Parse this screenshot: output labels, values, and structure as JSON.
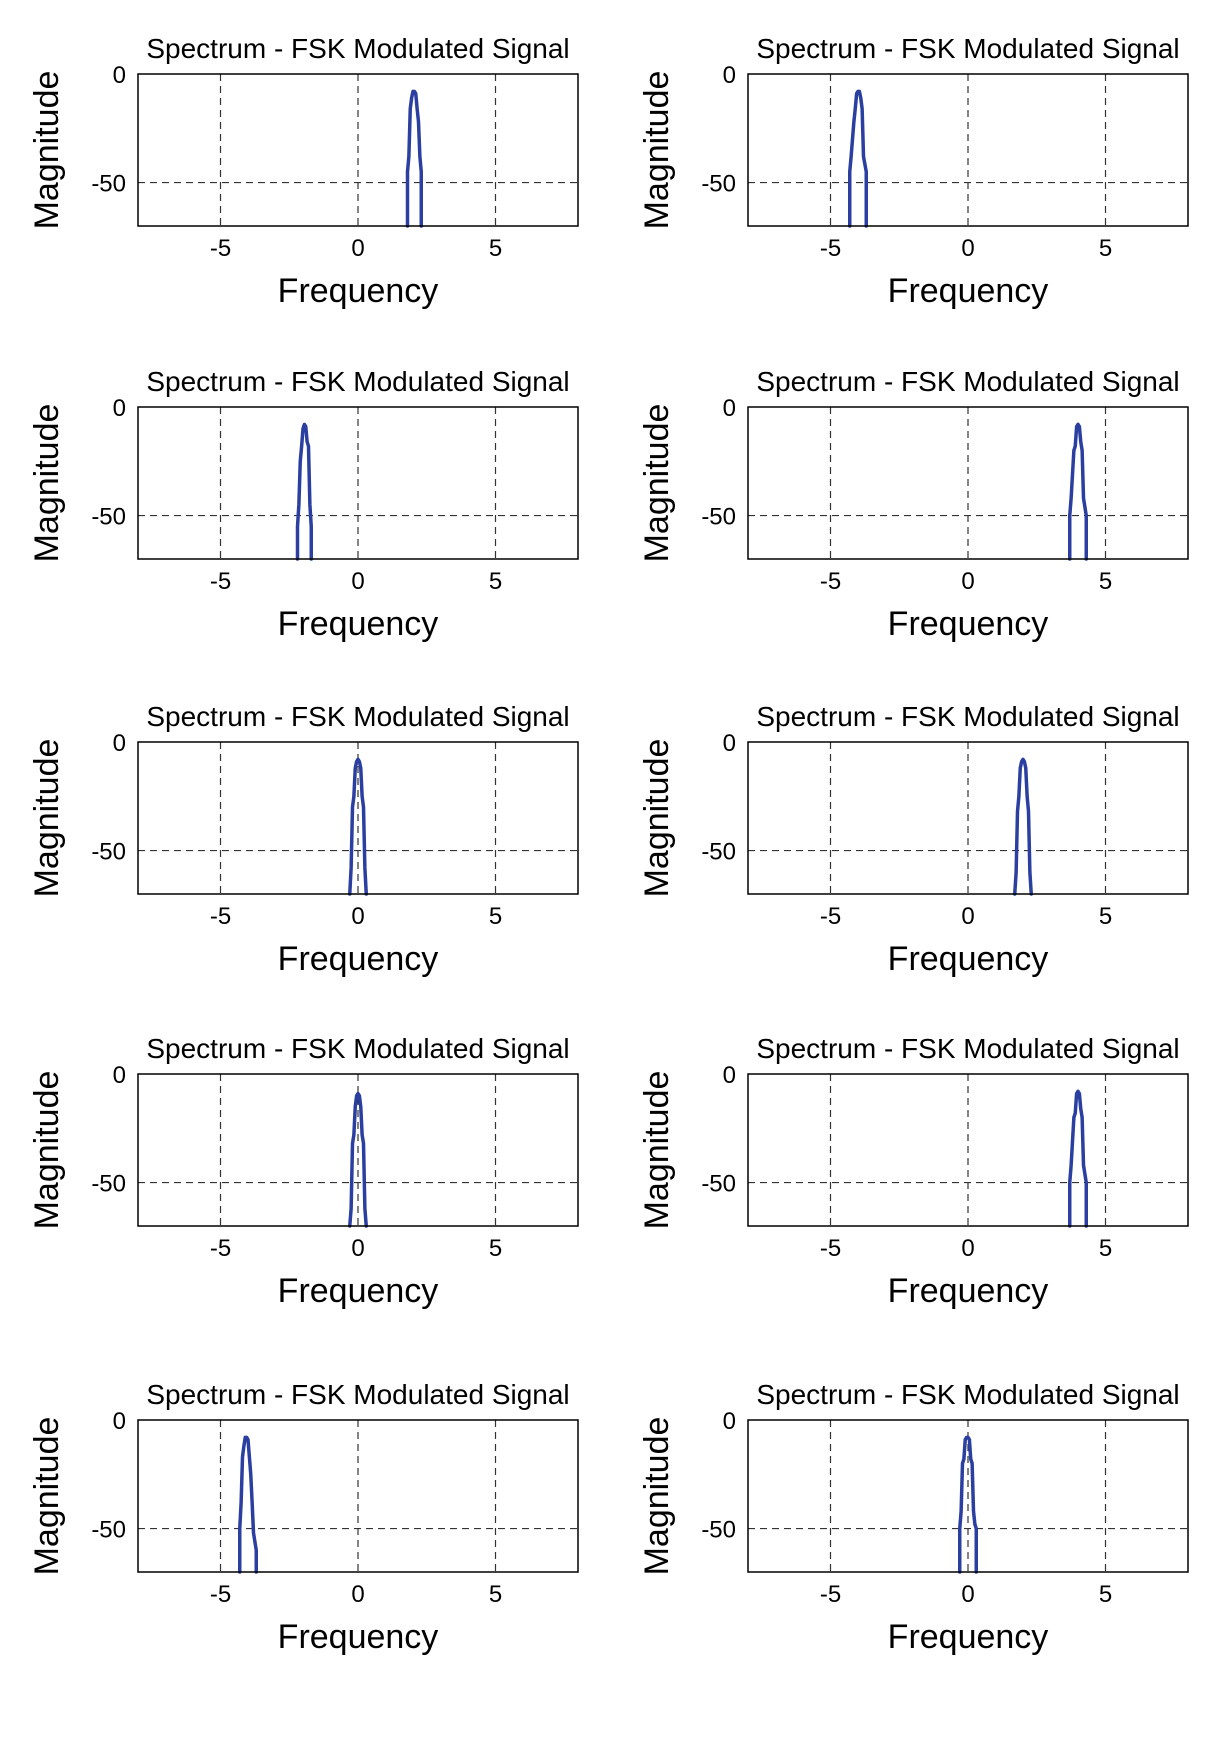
{
  "chart_data": [
    {
      "type": "line",
      "title": "Spectrum - FSK Modulated Signal",
      "xlabel": "Frequency",
      "ylabel": "Magnitude",
      "xlim": [
        -8,
        8
      ],
      "ylim": [
        -70,
        0
      ],
      "xticks": [
        -5,
        0,
        5
      ],
      "yticks": [
        0,
        -50
      ],
      "grid": true,
      "line_color": "#2b3fa0",
      "series": [
        {
          "x": [
            1.8,
            1.8,
            1.85,
            1.9,
            1.95,
            2.0,
            2.05,
            2.1,
            2.15,
            2.2,
            2.25,
            2.3,
            2.3
          ],
          "values": [
            -70,
            -45,
            -38,
            -16,
            -11,
            -8,
            -8,
            -9,
            -16,
            -22,
            -38,
            -45,
            -70
          ]
        }
      ]
    },
    {
      "type": "line",
      "title": "Spectrum - FSK Modulated Signal",
      "xlabel": "Frequency",
      "ylabel": "Magnitude",
      "xlim": [
        -8,
        8
      ],
      "ylim": [
        -70,
        0
      ],
      "xticks": [
        -5,
        0,
        5
      ],
      "yticks": [
        0,
        -50
      ],
      "grid": true,
      "line_color": "#2b3fa0",
      "series": [
        {
          "x": [
            -4.3,
            -4.3,
            -4.25,
            -4.15,
            -4.1,
            -4.05,
            -4.0,
            -3.95,
            -3.9,
            -3.85,
            -3.8,
            -3.7,
            -3.7
          ],
          "values": [
            -70,
            -45,
            -38,
            -22,
            -16,
            -9,
            -8,
            -8,
            -11,
            -16,
            -38,
            -45,
            -70
          ]
        }
      ]
    },
    {
      "type": "line",
      "title": "Spectrum - FSK Modulated Signal",
      "xlabel": "Frequency",
      "ylabel": "Magnitude",
      "xlim": [
        -8,
        8
      ],
      "ylim": [
        -70,
        0
      ],
      "xticks": [
        -5,
        0,
        5
      ],
      "yticks": [
        0,
        -50
      ],
      "grid": true,
      "line_color": "#2b3fa0",
      "series": [
        {
          "x": [
            -2.2,
            -2.2,
            -2.15,
            -2.1,
            -2.05,
            -2.0,
            -1.95,
            -1.9,
            -1.85,
            -1.8,
            -1.75,
            -1.7,
            -1.7
          ],
          "values": [
            -70,
            -55,
            -45,
            -25,
            -18,
            -10,
            -8,
            -9,
            -16,
            -18,
            -45,
            -55,
            -70
          ]
        }
      ]
    },
    {
      "type": "line",
      "title": "Spectrum - FSK Modulated Signal",
      "xlabel": "Frequency",
      "ylabel": "Magnitude",
      "xlim": [
        -8,
        8
      ],
      "ylim": [
        -70,
        0
      ],
      "xticks": [
        -5,
        0,
        5
      ],
      "yticks": [
        0,
        -50
      ],
      "grid": true,
      "line_color": "#2b3fa0",
      "series": [
        {
          "x": [
            3.7,
            3.7,
            3.75,
            3.85,
            3.9,
            3.95,
            4.0,
            4.05,
            4.1,
            4.15,
            4.2,
            4.3,
            4.3
          ],
          "values": [
            -70,
            -50,
            -42,
            -20,
            -18,
            -9,
            -8,
            -9,
            -16,
            -20,
            -42,
            -50,
            -70
          ]
        }
      ]
    },
    {
      "type": "line",
      "title": "Spectrum - FSK Modulated Signal",
      "xlabel": "Frequency",
      "ylabel": "Magnitude",
      "xlim": [
        -8,
        8
      ],
      "ylim": [
        -70,
        0
      ],
      "xticks": [
        -5,
        0,
        5
      ],
      "yticks": [
        0,
        -50
      ],
      "grid": true,
      "line_color": "#2b3fa0",
      "series": [
        {
          "x": [
            -0.3,
            -0.25,
            -0.2,
            -0.15,
            -0.1,
            -0.05,
            0.0,
            0.05,
            0.1,
            0.15,
            0.2,
            0.25,
            0.3
          ],
          "values": [
            -70,
            -58,
            -30,
            -25,
            -12,
            -9,
            -8,
            -9,
            -12,
            -25,
            -30,
            -58,
            -70
          ]
        }
      ]
    },
    {
      "type": "line",
      "title": "Spectrum - FSK Modulated Signal",
      "xlabel": "Frequency",
      "ylabel": "Magnitude",
      "xlim": [
        -8,
        8
      ],
      "ylim": [
        -70,
        0
      ],
      "xticks": [
        -5,
        0,
        5
      ],
      "yticks": [
        0,
        -50
      ],
      "grid": true,
      "line_color": "#2b3fa0",
      "series": [
        {
          "x": [
            1.7,
            1.75,
            1.8,
            1.85,
            1.9,
            1.95,
            2.0,
            2.05,
            2.1,
            2.15,
            2.2,
            2.25,
            2.3
          ],
          "values": [
            -70,
            -60,
            -32,
            -25,
            -12,
            -9,
            -8,
            -9,
            -12,
            -25,
            -32,
            -60,
            -70
          ]
        }
      ]
    },
    {
      "type": "line",
      "title": "Spectrum - FSK Modulated Signal",
      "xlabel": "Frequency",
      "ylabel": "Magnitude",
      "xlim": [
        -8,
        8
      ],
      "ylim": [
        -70,
        0
      ],
      "xticks": [
        -5,
        0,
        5
      ],
      "yticks": [
        0,
        -50
      ],
      "grid": true,
      "line_color": "#2b3fa0",
      "series": [
        {
          "x": [
            -0.3,
            -0.25,
            -0.2,
            -0.15,
            -0.1,
            -0.05,
            0.0,
            0.05,
            0.1,
            0.15,
            0.2,
            0.25,
            0.3
          ],
          "values": [
            -70,
            -62,
            -32,
            -28,
            -15,
            -10,
            -9,
            -10,
            -15,
            -28,
            -32,
            -62,
            -70
          ]
        }
      ]
    },
    {
      "type": "line",
      "title": "Spectrum - FSK Modulated Signal",
      "xlabel": "Frequency",
      "ylabel": "Magnitude",
      "xlim": [
        -8,
        8
      ],
      "ylim": [
        -70,
        0
      ],
      "xticks": [
        -5,
        0,
        5
      ],
      "yticks": [
        0,
        -50
      ],
      "grid": true,
      "line_color": "#2b3fa0",
      "series": [
        {
          "x": [
            3.7,
            3.7,
            3.75,
            3.85,
            3.9,
            3.95,
            4.0,
            4.05,
            4.1,
            4.15,
            4.2,
            4.3,
            4.3
          ],
          "values": [
            -70,
            -50,
            -42,
            -20,
            -18,
            -9,
            -8,
            -9,
            -16,
            -20,
            -42,
            -50,
            -70
          ]
        }
      ]
    },
    {
      "type": "line",
      "title": "Spectrum - FSK Modulated Signal",
      "xlabel": "Frequency",
      "ylabel": "Magnitude",
      "xlim": [
        -8,
        8
      ],
      "ylim": [
        -70,
        0
      ],
      "xticks": [
        -5,
        0,
        5
      ],
      "yticks": [
        0,
        -50
      ],
      "grid": true,
      "line_color": "#2b3fa0",
      "series": [
        {
          "x": [
            -4.3,
            -4.3,
            -4.25,
            -4.2,
            -4.15,
            -4.1,
            -4.05,
            -4.0,
            -3.95,
            -3.9,
            -3.85,
            -3.8,
            -3.7,
            -3.7
          ],
          "values": [
            -70,
            -50,
            -38,
            -17,
            -12,
            -8,
            -8,
            -9,
            -17,
            -25,
            -38,
            -52,
            -60,
            -70
          ]
        }
      ]
    },
    {
      "type": "line",
      "title": "Spectrum - FSK Modulated Signal",
      "xlabel": "Frequency",
      "ylabel": "Magnitude",
      "xlim": [
        -8,
        8
      ],
      "ylim": [
        -70,
        0
      ],
      "xticks": [
        -5,
        0,
        5
      ],
      "yticks": [
        0,
        -50
      ],
      "grid": true,
      "line_color": "#2b3fa0",
      "series": [
        {
          "x": [
            -0.3,
            -0.3,
            -0.25,
            -0.2,
            -0.15,
            -0.1,
            -0.05,
            0.0,
            0.05,
            0.1,
            0.15,
            0.2,
            0.25,
            0.3,
            0.3
          ],
          "values": [
            -70,
            -50,
            -42,
            -20,
            -18,
            -9,
            -8,
            -8,
            -9,
            -18,
            -20,
            -42,
            -48,
            -50,
            -70
          ]
        }
      ]
    }
  ]
}
